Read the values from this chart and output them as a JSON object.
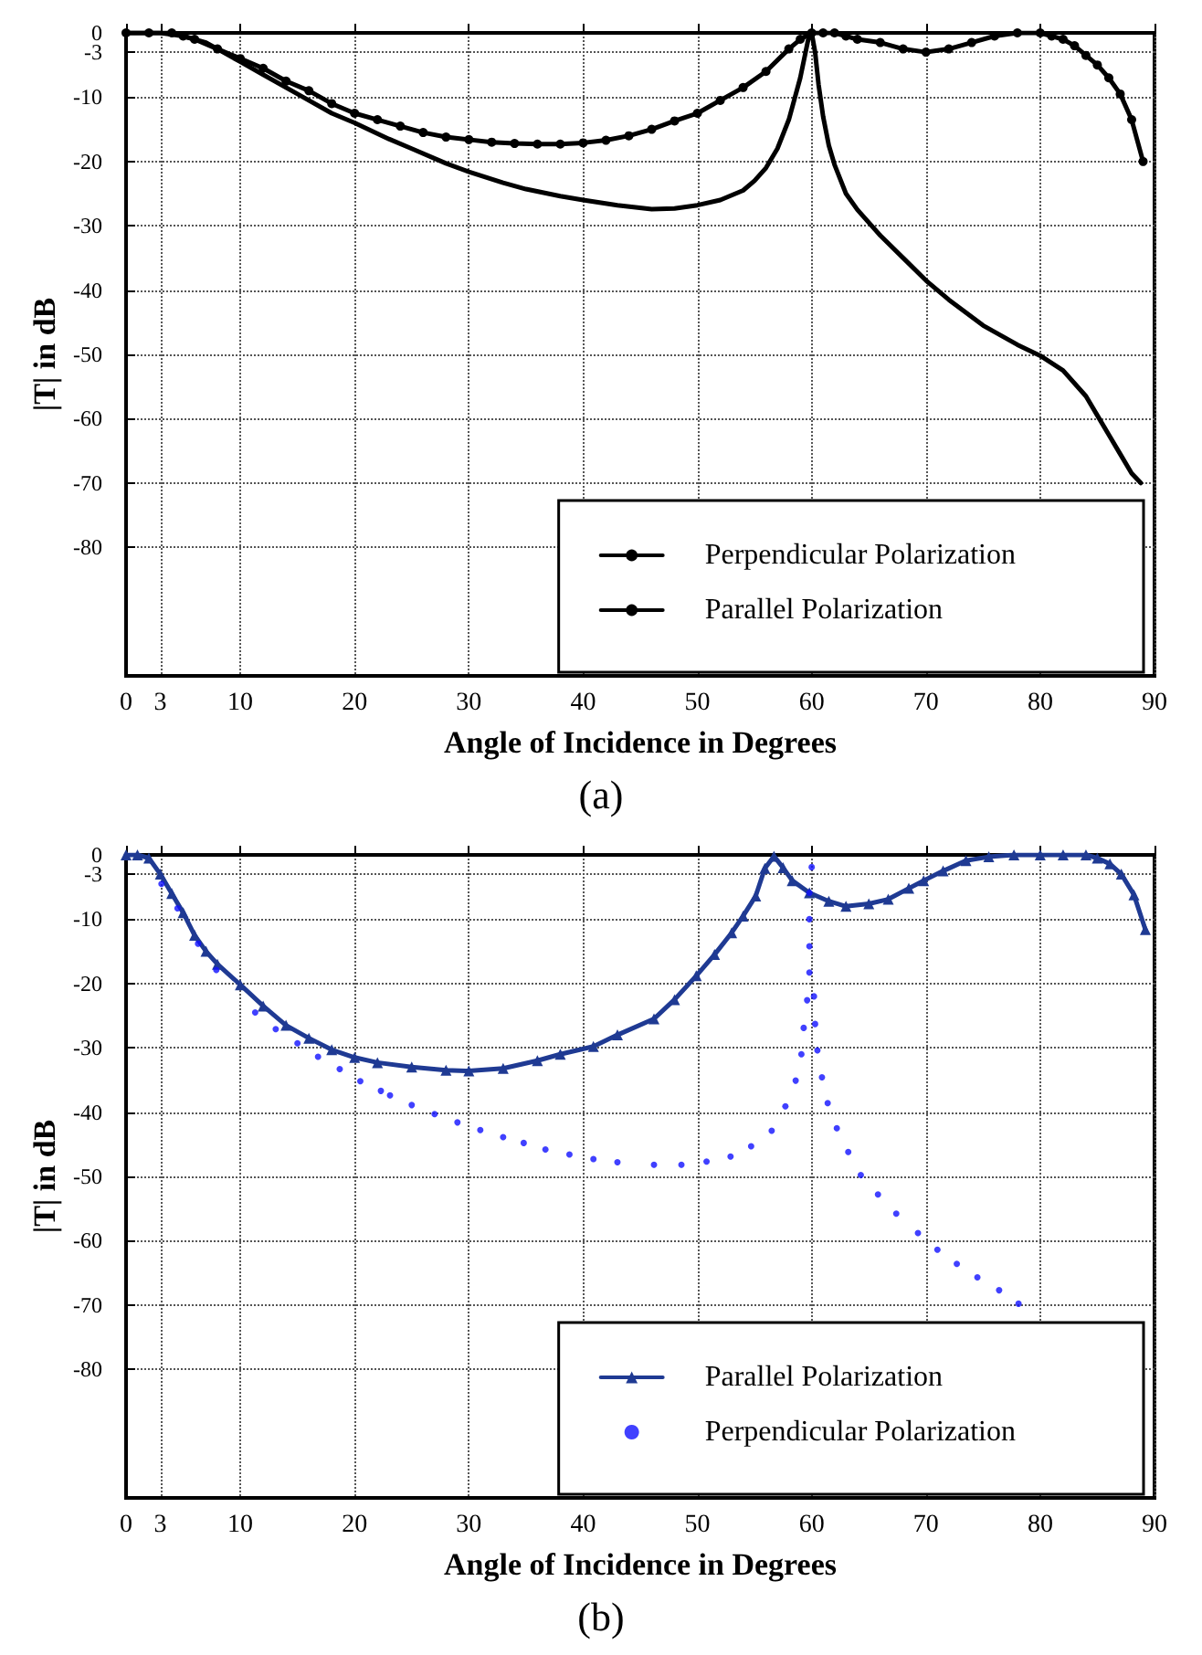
{
  "chart_data": [
    {
      "type": "line",
      "xlabel": "Angle of Incidence in Degrees",
      "ylabel": "|T| in dB",
      "annotations": [
        "(a)"
      ],
      "xlim": [
        0,
        90
      ],
      "xticks": [
        0,
        3,
        10,
        20,
        30,
        40,
        50,
        60,
        70,
        80,
        90
      ],
      "ylim": [
        -100,
        0
      ],
      "yticks": [
        0,
        -3,
        -10,
        -20,
        -30,
        -40,
        -50,
        -60,
        -70,
        -80
      ],
      "grid": true,
      "legend": "bottom right",
      "line_style": "solid",
      "series": [
        {
          "name": "Perpendicular Polarization",
          "color": "#000000",
          "marker": "circle",
          "x": [
            0,
            2,
            4,
            5,
            6,
            8,
            10,
            12,
            14,
            16,
            18,
            20,
            22,
            24,
            26,
            28,
            30,
            32,
            34,
            36,
            38,
            40,
            42,
            44,
            46,
            48,
            50,
            52,
            54,
            56,
            58,
            59,
            60,
            61,
            62,
            63,
            64,
            66,
            68,
            70,
            72,
            74,
            76,
            78,
            80,
            81,
            82,
            83,
            84,
            85,
            86,
            87,
            88,
            89
          ],
          "values": [
            0,
            0,
            0,
            -0.5,
            -1,
            -2.5,
            -4,
            -5.5,
            -7.5,
            -9,
            -11,
            -12.5,
            -13.5,
            -14.5,
            -15.5,
            -16.2,
            -16.6,
            -17,
            -17.2,
            -17.3,
            -17.3,
            -17.1,
            -16.7,
            -16,
            -15,
            -13.7,
            -12.5,
            -10.5,
            -8.5,
            -6,
            -2.5,
            -1,
            0,
            0,
            0,
            -0.5,
            -1,
            -1.5,
            -2.5,
            -3,
            -2.5,
            -1.5,
            -0.5,
            0,
            0,
            -0.5,
            -1,
            -2,
            -3.5,
            -5,
            -7,
            -9.5,
            -13.5,
            -20
          ]
        },
        {
          "name": "Parallel Polarization",
          "color": "#000000",
          "marker": "none",
          "x": [
            0,
            3,
            5,
            7,
            10,
            12,
            15,
            18,
            20,
            23,
            25,
            28,
            30,
            33,
            35,
            38,
            40,
            43,
            46,
            48,
            50,
            52,
            54,
            55,
            56,
            57,
            58,
            59,
            59.7,
            60,
            60.3,
            60.6,
            61,
            61.5,
            62,
            63,
            64,
            66,
            68,
            70,
            72,
            75,
            78,
            80,
            82,
            84,
            85,
            86,
            87,
            88,
            88.8
          ],
          "values": [
            0,
            0,
            -0.5,
            -1.5,
            -4.5,
            -6.5,
            -9.5,
            -12.5,
            -14,
            -16.5,
            -18,
            -20.3,
            -21.6,
            -23.3,
            -24.3,
            -25.4,
            -26,
            -26.8,
            -27.4,
            -27.3,
            -26.8,
            -26,
            -24.5,
            -23,
            -21,
            -18,
            -13.5,
            -7,
            -1,
            0,
            -3,
            -8,
            -13,
            -17.5,
            -20.5,
            -25,
            -27.5,
            -31.5,
            -35,
            -38.5,
            -41.5,
            -45.5,
            -48.5,
            -50.2,
            -52.5,
            -56.5,
            -59.5,
            -62.5,
            -65.5,
            -68.5,
            -70
          ]
        }
      ]
    },
    {
      "type": "line",
      "xlabel": "Angle of Incidence in Degrees",
      "ylabel": "|T| in dB",
      "annotations": [
        "(b)"
      ],
      "xlim": [
        0,
        90
      ],
      "xticks": [
        0,
        3,
        10,
        20,
        30,
        40,
        50,
        60,
        70,
        80,
        90
      ],
      "ylim": [
        -100,
        0
      ],
      "yticks": [
        0,
        -3,
        -10,
        -20,
        -30,
        -40,
        -50,
        -60,
        -70,
        -80
      ],
      "grid": true,
      "legend": "bottom right",
      "line_style": "solid",
      "series": [
        {
          "name": "Parallel Polarization",
          "color": "#1f3a93",
          "marker": "triangle",
          "x": [
            0,
            1,
            2,
            3,
            4,
            5,
            6,
            7,
            8,
            10,
            12,
            14,
            16,
            18,
            20,
            22,
            25,
            28,
            30,
            33,
            36,
            38,
            40.9,
            43,
            46.2,
            48,
            49.9,
            51.5,
            53,
            54,
            55.1,
            55.9,
            56.7,
            57.5,
            58.3,
            59.8,
            61.5,
            63,
            65,
            66.7,
            68.5,
            69.8,
            71.5,
            73.5,
            75.5,
            77.7,
            80,
            82,
            84,
            85,
            86.1,
            87.1,
            88.2,
            89.2
          ],
          "values": [
            0,
            0,
            -0.5,
            -3,
            -6,
            -9,
            -12.5,
            -15,
            -17,
            -20.2,
            -23.5,
            -26.5,
            -28.5,
            -30.3,
            -31.5,
            -32.3,
            -33,
            -33.5,
            -33.6,
            -33.2,
            -32,
            -31,
            -29.8,
            -28,
            -25.5,
            -22.5,
            -18.8,
            -15.5,
            -12.1,
            -9.5,
            -6.4,
            -2.1,
            -0.2,
            -2,
            -4,
            -5.9,
            -7.2,
            -8,
            -7.6,
            -6.9,
            -5.2,
            -4,
            -2.5,
            -0.9,
            -0.3,
            0,
            0,
            0,
            0,
            -0.5,
            -1.4,
            -3,
            -6.2,
            -11.6
          ]
        },
        {
          "name": "Perpendicular Polarization",
          "type": "scatter",
          "color": "#1010ff",
          "marker": "circle",
          "x": [
            3.1,
            4.5,
            6.3,
            7.9,
            11.3,
            13.1,
            15,
            16.8,
            18.7,
            20.5,
            22.3,
            23.1,
            25,
            27,
            29,
            31,
            33,
            34.8,
            36.7,
            38.8,
            40.9,
            43,
            46.2,
            48.6,
            50.8,
            52.9,
            54.7,
            56.5,
            57.7,
            58.6,
            59.1,
            59.3,
            59.6,
            59.8,
            59.8,
            59.8,
            59.8,
            60,
            60.2,
            60.3,
            60.5,
            60.9,
            61.4,
            62.2,
            63.2,
            64.3,
            65.8,
            67.4,
            69.3,
            71,
            72.7,
            74.5,
            76.4,
            78.1
          ],
          "values": [
            -4.5,
            -8.3,
            -13.8,
            -17.9,
            -24.5,
            -27.1,
            -29.3,
            -31.4,
            -33.3,
            -35.2,
            -36.7,
            -37.4,
            -38.9,
            -40.3,
            -41.6,
            -42.8,
            -43.9,
            -44.8,
            -45.8,
            -46.6,
            -47.3,
            -47.8,
            -48.2,
            -48.2,
            -47.7,
            -46.9,
            -45.3,
            -42.9,
            -39.1,
            -35.1,
            -31,
            -26.9,
            -22.6,
            -18.3,
            -14.2,
            -10,
            -5.9,
            -1.9,
            -22,
            -26.3,
            -30.4,
            -34.6,
            -38.6,
            -42.5,
            -46.2,
            -49.8,
            -52.8,
            -55.8,
            -58.8,
            -61.4,
            -63.6,
            -65.7,
            -67.7,
            -69.8
          ]
        }
      ]
    }
  ]
}
